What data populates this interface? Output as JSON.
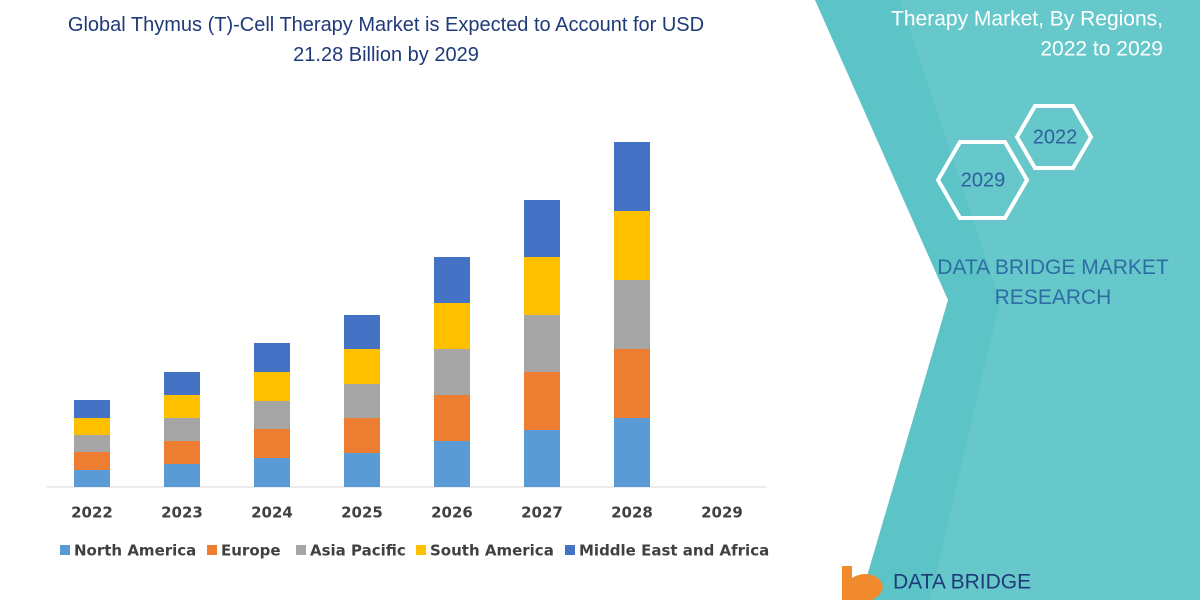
{
  "chart_data": {
    "type": "stacked-bar",
    "title": "Global Thymus (T)-Cell Therapy Market is Expected to Account for USD 21.28 Billion by 2029",
    "categories": [
      "2022",
      "2023",
      "2024",
      "2025",
      "2026",
      "2027",
      "2028",
      "2029"
    ],
    "series": [
      {
        "name": "North America",
        "color": "#5b9bd5",
        "values": [
          17,
          23,
          29,
          34,
          46,
          57,
          69,
          null
        ]
      },
      {
        "name": "Europe",
        "color": "#ed7d31",
        "values": [
          18,
          23,
          29,
          35,
          46,
          58,
          69,
          null
        ]
      },
      {
        "name": "Asia Pacific",
        "color": "#a5a5a5",
        "values": [
          17,
          23,
          28,
          34,
          46,
          57,
          69,
          null
        ]
      },
      {
        "name": "South America",
        "color": "#ffc000",
        "values": [
          17,
          23,
          29,
          35,
          46,
          58,
          69,
          null
        ]
      },
      {
        "name": "Middle East and Africa",
        "color": "#4472c4",
        "values": [
          18,
          23,
          29,
          34,
          46,
          57,
          69,
          null
        ]
      }
    ]
  },
  "panel": {
    "subtitle_lines": [
      "Therapy Market, By Regions,",
      "2022 to 2029"
    ],
    "hexagons": [
      "2022",
      "2029"
    ],
    "brand": "DATA BRIDGE MARKET RESEARCH",
    "logo": "DATA BRIDGE"
  }
}
